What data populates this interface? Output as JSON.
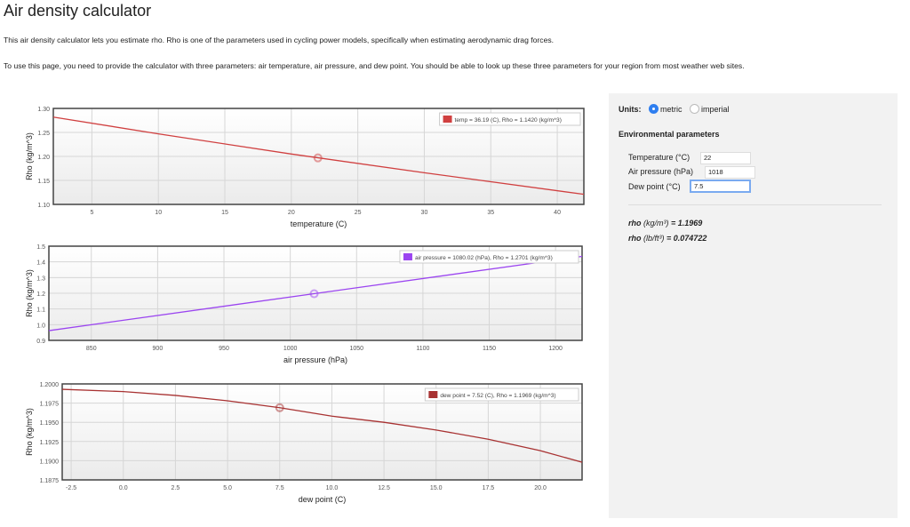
{
  "title": "Air density calculator",
  "intro1": "This air density calculator lets you estimate rho. Rho is one of the parameters used in cycling power models, specifically when estimating aerodynamic drag forces.",
  "intro2": "To use this page, you need to provide the calculator with three parameters: air temperature, air pressure, and dew point. You should be able to look up these three parameters for your region from most weather web sites.",
  "panel": {
    "units_label": "Units:",
    "metric": "metric",
    "imperial": "imperial",
    "selected": "metric",
    "env_heading": "Environmental parameters",
    "temp_label": "Temperature (°C)",
    "temp_value": "22",
    "pressure_label": "Air pressure (hPa)",
    "pressure_value": "1018",
    "dew_label": "Dew point (°C)",
    "dew_value": "7.5",
    "rho_kg_name": "rho",
    "rho_kg_unit": "(kg/m³)",
    "rho_kg_value": "= 1.1969",
    "rho_lb_name": "rho",
    "rho_lb_unit": "(lb/ft³)",
    "rho_lb_value": "= 0.074722"
  },
  "chart_data": [
    {
      "type": "line",
      "xlabel": "temperature (C)",
      "ylabel": "Rho (kg/m^3)",
      "xlim": [
        2.1,
        42
      ],
      "ylim": [
        1.1,
        1.3
      ],
      "xticks": [
        5,
        10,
        15,
        20,
        25,
        30,
        35,
        40
      ],
      "yticks": [
        "1.10",
        "1.15",
        "1.20",
        "1.25",
        "1.30"
      ],
      "legend": "temp = 36.19 (C), Rho = 1.1420 (kg/m^3)",
      "legend_position": "top-right",
      "color": "#d04040",
      "x": [
        2.1,
        10,
        20,
        30,
        42
      ],
      "y": [
        1.282,
        1.247,
        1.205,
        1.166,
        1.121
      ],
      "marker": {
        "x": 22,
        "y": 1.1969
      }
    },
    {
      "type": "line",
      "xlabel": "air pressure (hPa)",
      "ylabel": "Rho (kg/m^3)",
      "xlim": [
        818,
        1220
      ],
      "ylim": [
        0.9,
        1.5
      ],
      "xticks": [
        850,
        900,
        950,
        1000,
        1050,
        1100,
        1150,
        1200
      ],
      "yticks": [
        "0.9",
        "1.0",
        "1.1",
        "1.2",
        "1.3",
        "1.4",
        "1.5"
      ],
      "legend": "air pressure = 1080.02 (hPa), Rho = 1.2701 (kg/m^3)",
      "legend_position": "top-right",
      "color": "#9b45f0",
      "x": [
        818,
        1220
      ],
      "y": [
        0.962,
        1.435
      ],
      "marker": {
        "x": 1018,
        "y": 1.1969
      }
    },
    {
      "type": "line",
      "xlabel": "dew point (C)",
      "ylabel": "Rho (kg/m^3)",
      "xlim": [
        -2.93,
        22
      ],
      "ylim": [
        1.1875,
        1.2
      ],
      "xticks": [
        "-2.5",
        "0.0",
        "2.5",
        "5.0",
        "7.5",
        "10.0",
        "12.5",
        "15.0",
        "17.5",
        "20.0"
      ],
      "yticks": [
        "1.1875",
        "1.1900",
        "1.1925",
        "1.1950",
        "1.1975",
        "1.2000"
      ],
      "legend": "dew point = 7.52 (C), Rho = 1.1969 (kg/m^3)",
      "legend_position": "top-right",
      "color": "#a83232",
      "x": [
        -2.93,
        0,
        2.5,
        5,
        7.5,
        10,
        12.5,
        15,
        17.5,
        20,
        22
      ],
      "y": [
        1.1993,
        1.199,
        1.1985,
        1.1978,
        1.1969,
        1.1958,
        1.195,
        1.194,
        1.1928,
        1.1913,
        1.1898
      ],
      "marker": {
        "x": 7.5,
        "y": 1.1969
      }
    }
  ]
}
